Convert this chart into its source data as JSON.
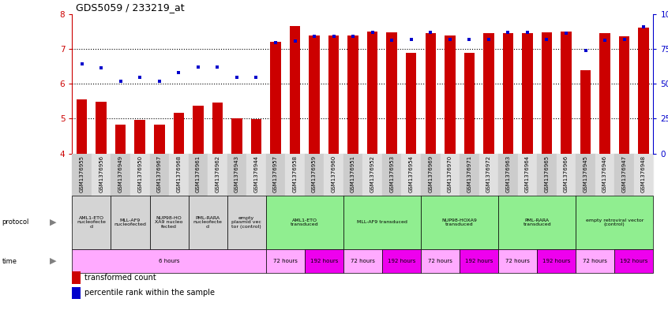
{
  "title": "GDS5059 / 233219_at",
  "samples": [
    "GSM1376955",
    "GSM1376956",
    "GSM1376949",
    "GSM1376950",
    "GSM1376967",
    "GSM1376968",
    "GSM1376961",
    "GSM1376962",
    "GSM1376943",
    "GSM1376944",
    "GSM1376957",
    "GSM1376958",
    "GSM1376959",
    "GSM1376960",
    "GSM1376951",
    "GSM1376952",
    "GSM1376953",
    "GSM1376954",
    "GSM1376969",
    "GSM1376970",
    "GSM1376971",
    "GSM1376972",
    "GSM1376963",
    "GSM1376964",
    "GSM1376965",
    "GSM1376966",
    "GSM1376945",
    "GSM1376946",
    "GSM1376947",
    "GSM1376948"
  ],
  "bar_values": [
    5.55,
    5.48,
    4.83,
    4.97,
    4.82,
    5.17,
    5.38,
    5.46,
    5.01,
    4.98,
    7.2,
    7.65,
    7.38,
    7.38,
    7.38,
    7.5,
    7.48,
    6.88,
    7.45,
    7.38,
    6.88,
    7.45,
    7.45,
    7.45,
    7.48,
    7.5,
    6.38,
    7.45,
    7.35,
    7.6
  ],
  "dot_values": [
    6.56,
    6.46,
    6.07,
    6.18,
    6.07,
    6.33,
    6.48,
    6.47,
    6.18,
    6.18,
    7.18,
    7.22,
    7.35,
    7.35,
    7.35,
    7.48,
    7.25,
    7.28,
    7.48,
    7.28,
    7.28,
    7.28,
    7.48,
    7.48,
    7.28,
    7.45,
    6.95,
    7.25,
    7.28,
    7.62
  ],
  "ylim": [
    4,
    8
  ],
  "yticks_left": [
    4,
    5,
    6,
    7,
    8
  ],
  "yticks_right_vals": [
    0,
    25,
    50,
    75,
    100
  ],
  "bar_color": "#cc0000",
  "dot_color": "#0000cc",
  "protocol_groups": [
    {
      "label": "AML1-ETO\nnucleofecte\nd",
      "start": 0,
      "end": 2,
      "color": "#d4d4d4"
    },
    {
      "label": "MLL-AF9\nnucleofected",
      "start": 2,
      "end": 4,
      "color": "#d4d4d4"
    },
    {
      "label": "NUP98-HO\nXA9 nucleo\nfected",
      "start": 4,
      "end": 6,
      "color": "#d4d4d4"
    },
    {
      "label": "PML-RARA\nnucleofecte\nd",
      "start": 6,
      "end": 8,
      "color": "#d4d4d4"
    },
    {
      "label": "empty\nplasmid vec\ntor (control)",
      "start": 8,
      "end": 10,
      "color": "#d4d4d4"
    },
    {
      "label": "AML1-ETO\ntransduced",
      "start": 10,
      "end": 14,
      "color": "#90ee90"
    },
    {
      "label": "MLL-AF9 transduced",
      "start": 14,
      "end": 18,
      "color": "#90ee90"
    },
    {
      "label": "NUP98-HOXA9\ntransduced",
      "start": 18,
      "end": 22,
      "color": "#90ee90"
    },
    {
      "label": "PML-RARA\ntransduced",
      "start": 22,
      "end": 26,
      "color": "#90ee90"
    },
    {
      "label": "empty retroviral vector\n(control)",
      "start": 26,
      "end": 30,
      "color": "#90ee90"
    }
  ],
  "time_groups": [
    {
      "label": "6 hours",
      "start": 0,
      "end": 10,
      "color": "#ffaaff"
    },
    {
      "label": "72 hours",
      "start": 10,
      "end": 12,
      "color": "#ffaaff"
    },
    {
      "label": "192 hours",
      "start": 12,
      "end": 14,
      "color": "#ee00ee"
    },
    {
      "label": "72 hours",
      "start": 14,
      "end": 16,
      "color": "#ffaaff"
    },
    {
      "label": "192 hours",
      "start": 16,
      "end": 18,
      "color": "#ee00ee"
    },
    {
      "label": "72 hours",
      "start": 18,
      "end": 20,
      "color": "#ffaaff"
    },
    {
      "label": "192 hours",
      "start": 20,
      "end": 22,
      "color": "#ee00ee"
    },
    {
      "label": "72 hours",
      "start": 22,
      "end": 24,
      "color": "#ffaaff"
    },
    {
      "label": "192 hours",
      "start": 24,
      "end": 26,
      "color": "#ee00ee"
    },
    {
      "label": "72 hours",
      "start": 26,
      "end": 28,
      "color": "#ffaaff"
    },
    {
      "label": "192 hours",
      "start": 28,
      "end": 30,
      "color": "#ee00ee"
    }
  ]
}
